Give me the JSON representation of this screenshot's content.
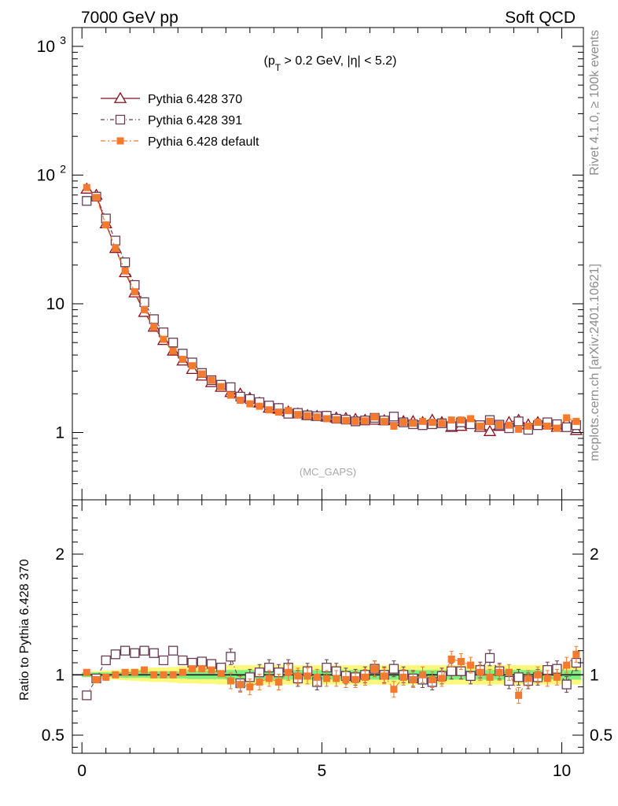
{
  "header": {
    "left": "7000 GeV pp",
    "right": "Soft QCD"
  },
  "side_labels": {
    "rivet": "Rivet 4.1.0, ≥ 100k events",
    "mcplots": "mcplots.cern.ch [arXiv:2401.10621]"
  },
  "colors": {
    "pythia370": "#8b0e1d",
    "pythia391": "#6a3d53",
    "pythia_default": "#f47a2f",
    "band_inner": "#7ff07f",
    "band_outer": "#fbf87a"
  },
  "chart_data": [
    {
      "type": "line",
      "name": "main",
      "title": "(p_T > 0.2 GeV, |η| < 5.2)",
      "title_parts": {
        "p": "(p",
        "sub": "T",
        "rest": " > 0.2 GeV, |η| < 5.2)"
      },
      "watermark": "(MC_GAPS)",
      "yscale": "log",
      "ylim": [
        0.3,
        1400
      ],
      "xlim": [
        -0.2,
        10.45
      ],
      "yticks": [
        {
          "value": 1,
          "label": "1"
        },
        {
          "value": 10,
          "label": "10"
        },
        {
          "value": 100,
          "label": "10",
          "sup": "2"
        },
        {
          "value": 1000,
          "label": "10",
          "sup": "3"
        }
      ],
      "legend_position": "top-left",
      "x": [
        0.1,
        0.3,
        0.5,
        0.7,
        0.9,
        1.1,
        1.3,
        1.5,
        1.7,
        1.9,
        2.1,
        2.3,
        2.5,
        2.7,
        2.9,
        3.1,
        3.3,
        3.5,
        3.7,
        3.9,
        4.1,
        4.3,
        4.5,
        4.7,
        4.9,
        5.1,
        5.3,
        5.5,
        5.7,
        5.9,
        6.1,
        6.3,
        6.5,
        6.7,
        6.9,
        7.1,
        7.3,
        7.5,
        7.7,
        7.9,
        8.1,
        8.3,
        8.5,
        8.7,
        8.9,
        9.1,
        9.3,
        9.5,
        9.7,
        9.9,
        10.1,
        10.3
      ],
      "series": [
        {
          "name": "Pythia 6.428 370",
          "marker": "triangle-open",
          "style": "solid",
          "values": [
            78,
            70,
            42,
            27,
            17.5,
            12.2,
            8.6,
            6.6,
            5.2,
            4.3,
            3.6,
            3.1,
            2.75,
            2.45,
            2.25,
            2.05,
            2.0,
            1.85,
            1.7,
            1.55,
            1.52,
            1.45,
            1.4,
            1.36,
            1.34,
            1.32,
            1.3,
            1.29,
            1.27,
            1.25,
            1.25,
            1.24,
            1.28,
            1.22,
            1.22,
            1.2,
            1.25,
            1.2,
            1.1,
            1.12,
            1.18,
            1.1,
            1.02,
            1.12,
            1.2,
            1.25,
            1.15,
            1.2,
            1.15,
            1.1,
            1.2,
            1.04
          ]
        },
        {
          "name": "Pythia 6.428 391",
          "marker": "square-open",
          "style": "dashdot",
          "values": [
            63,
            68,
            46,
            31,
            21,
            14,
            10.3,
            7.6,
            6.0,
            5.0,
            4.1,
            3.5,
            2.9,
            2.55,
            2.35,
            2.25,
            1.9,
            1.82,
            1.72,
            1.62,
            1.55,
            1.4,
            1.42,
            1.36,
            1.34,
            1.35,
            1.28,
            1.26,
            1.22,
            1.24,
            1.3,
            1.24,
            1.33,
            1.2,
            1.16,
            1.14,
            1.16,
            1.18,
            1.12,
            1.2,
            1.16,
            1.14,
            1.25,
            1.15,
            1.08,
            1.22,
            1.05,
            1.14,
            1.2,
            1.16,
            1.1,
            1.14
          ]
        },
        {
          "name": "Pythia 6.428 default",
          "marker": "square-filled",
          "style": "dashdot",
          "values": [
            80,
            67,
            41,
            27,
            18,
            12.4,
            9.0,
            6.6,
            5.3,
            4.3,
            3.7,
            3.3,
            2.85,
            2.55,
            2.27,
            1.95,
            1.78,
            1.67,
            1.6,
            1.5,
            1.44,
            1.48,
            1.38,
            1.35,
            1.32,
            1.28,
            1.26,
            1.24,
            1.22,
            1.23,
            1.32,
            1.22,
            1.12,
            1.2,
            1.18,
            1.22,
            1.2,
            1.18,
            1.25,
            1.25,
            1.28,
            1.12,
            1.22,
            1.15,
            1.14,
            1.06,
            1.12,
            1.2,
            1.12,
            1.08,
            1.3,
            1.22
          ]
        }
      ]
    },
    {
      "type": "line",
      "name": "ratio",
      "ylabel": "Ratio to Pythia 6.428 370",
      "ylim": [
        0.35,
        2.45
      ],
      "xlim": [
        -0.2,
        10.45
      ],
      "yticks": [
        {
          "value": 0.5,
          "label": "0.5"
        },
        {
          "value": 1,
          "label": "1"
        },
        {
          "value": 2,
          "label": "2"
        }
      ],
      "xticks": [
        {
          "value": 0,
          "label": "0"
        },
        {
          "value": 5,
          "label": "5"
        },
        {
          "value": 10,
          "label": "10"
        }
      ],
      "x": [
        0.1,
        0.3,
        0.5,
        0.7,
        0.9,
        1.1,
        1.3,
        1.5,
        1.7,
        1.9,
        2.1,
        2.3,
        2.5,
        2.7,
        2.9,
        3.1,
        3.3,
        3.5,
        3.7,
        3.9,
        4.1,
        4.3,
        4.5,
        4.7,
        4.9,
        5.1,
        5.3,
        5.5,
        5.7,
        5.9,
        6.1,
        6.3,
        6.5,
        6.7,
        6.9,
        7.1,
        7.3,
        7.5,
        7.7,
        7.9,
        8.1,
        8.3,
        8.5,
        8.7,
        8.9,
        9.1,
        9.3,
        9.5,
        9.7,
        9.9,
        10.1,
        10.3
      ],
      "band_inner": [
        0.02,
        0.02,
        0.02,
        0.02,
        0.025,
        0.025,
        0.025,
        0.03,
        0.03,
        0.03,
        0.03,
        0.035,
        0.035,
        0.035,
        0.035,
        0.04,
        0.04,
        0.04,
        0.04,
        0.04,
        0.04,
        0.04,
        0.04,
        0.04,
        0.04,
        0.04,
        0.04,
        0.04,
        0.04,
        0.04,
        0.04,
        0.04,
        0.04,
        0.04,
        0.04,
        0.04,
        0.04,
        0.04,
        0.04,
        0.04,
        0.04,
        0.04,
        0.04,
        0.04,
        0.04,
        0.04,
        0.04,
        0.04,
        0.04,
        0.04,
        0.04,
        0.04
      ],
      "band_outer": [
        0.02,
        0.03,
        0.035,
        0.04,
        0.045,
        0.05,
        0.055,
        0.06,
        0.06,
        0.065,
        0.07,
        0.07,
        0.075,
        0.075,
        0.08,
        0.08,
        0.08,
        0.08,
        0.08,
        0.08,
        0.08,
        0.08,
        0.08,
        0.08,
        0.08,
        0.08,
        0.08,
        0.08,
        0.08,
        0.08,
        0.08,
        0.08,
        0.08,
        0.08,
        0.08,
        0.08,
        0.08,
        0.08,
        0.08,
        0.08,
        0.08,
        0.08,
        0.08,
        0.08,
        0.08,
        0.08,
        0.08,
        0.08,
        0.08,
        0.08,
        0.08,
        0.08
      ],
      "series": [
        {
          "name": "Pythia 6.428 391",
          "marker": "square-open",
          "style": "dashdot",
          "values": [
            0.83,
            0.97,
            1.12,
            1.17,
            1.2,
            1.18,
            1.2,
            1.18,
            1.12,
            1.2,
            1.12,
            1.1,
            1.11,
            1.09,
            1.06,
            1.15,
            0.93,
            0.98,
            1.02,
            1.06,
            1.02,
            1.06,
            0.97,
            1.03,
            0.94,
            1.06,
            1.03,
            0.99,
            0.98,
            1.0,
            1.05,
            1.0,
            1.05,
            1.0,
            0.97,
            0.96,
            0.94,
            0.99,
            1.03,
            1.03,
            0.99,
            1.04,
            1.14,
            1.03,
            0.95,
            0.98,
            0.95,
            0.98,
            1.04,
            1.05,
            0.92,
            1.1
          ]
        },
        {
          "name": "Pythia 6.428 default",
          "marker": "square-filled",
          "style": "dashdot",
          "values": [
            1.02,
            0.96,
            0.98,
            1.0,
            1.02,
            1.02,
            1.04,
            1.0,
            1.0,
            1.0,
            1.02,
            1.05,
            1.05,
            1.04,
            1.01,
            0.95,
            0.92,
            0.9,
            0.94,
            0.97,
            0.94,
            1.02,
            0.99,
            0.99,
            0.98,
            0.97,
            0.97,
            0.96,
            0.96,
            0.98,
            1.05,
            0.99,
            0.88,
            0.98,
            0.96,
            1.0,
            0.96,
            0.97,
            1.13,
            1.11,
            1.08,
            1.02,
            0.98,
            1.02,
            1.02,
            0.83,
            0.97,
            1.0,
            0.97,
            0.98,
            1.08,
            1.17
          ]
        }
      ]
    }
  ]
}
